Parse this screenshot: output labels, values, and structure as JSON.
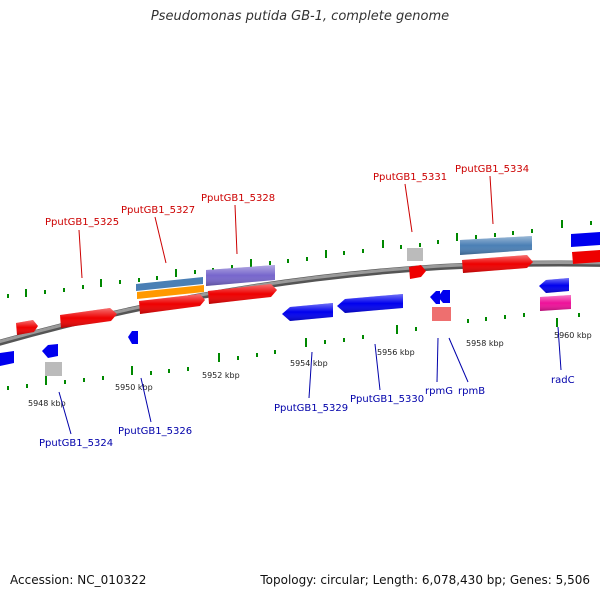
{
  "header": {
    "title": "Pseudomonas putida GB-1, complete genome"
  },
  "footer": {
    "accession": "Accession: NC_010322",
    "summary": "Topology: circular; Length: 6,078,430 bp; Genes: 5,506"
  },
  "colors": {
    "forward_label": "#cc0000",
    "reverse_label": "#0000aa",
    "gene_red": "#ee0000",
    "gene_blue": "#0000ee",
    "steelblue": "#4a7fb5",
    "orange": "#ff9900",
    "purple": "#7766cc",
    "grey": "#bbbbbb",
    "pink": "#ee6f6f",
    "magenta": "#ee1199",
    "tick_green": "#008800",
    "backbone": "#777777"
  },
  "ruler": {
    "labels": [
      "5948 kbp",
      "5950 kbp",
      "5952 kbp",
      "5954 kbp",
      "5956 kbp",
      "5958 kbp",
      "5960 kbp"
    ]
  },
  "genes_top": [
    {
      "label": "PputGB1_5325"
    },
    {
      "label": "PputGB1_5327"
    },
    {
      "label": "PputGB1_5328"
    },
    {
      "label": "PputGB1_5331"
    },
    {
      "label": "PputGB1_5334"
    }
  ],
  "genes_bottom": [
    {
      "label": "PputGB1_5324"
    },
    {
      "label": "PputGB1_5326"
    },
    {
      "label": "PputGB1_5329"
    },
    {
      "label": "PputGB1_5330"
    },
    {
      "label": "rpmG"
    },
    {
      "label": "rpmB"
    },
    {
      "label": "radC"
    }
  ]
}
